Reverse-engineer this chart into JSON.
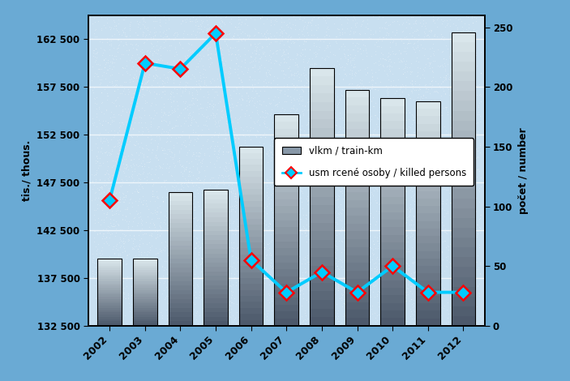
{
  "years": [
    2002,
    2003,
    2004,
    2005,
    2006,
    2007,
    2008,
    2009,
    2010,
    2011,
    2012
  ],
  "train_km": [
    139500,
    139500,
    146500,
    146700,
    151200,
    154600,
    159500,
    157200,
    156300,
    156000,
    163200
  ],
  "killed": [
    105,
    220,
    215,
    245,
    55,
    28,
    45,
    28,
    50,
    28,
    28
  ],
  "line_color": "#00ccff",
  "marker_face_color": "#00ccff",
  "marker_edge_color": "#ff0000",
  "outer_bg_color": "#6aaad4",
  "plot_bg_color": "#c8dff0",
  "ylim_left": [
    132500,
    165000
  ],
  "ylim_right": [
    0,
    260
  ],
  "yticks_left": [
    132500,
    137500,
    142500,
    147500,
    152500,
    157500,
    162500
  ],
  "ytick_labels_left": [
    "132 500",
    "137 500",
    "142 500",
    "147 500",
    "152 500",
    "157 500",
    "162 500"
  ],
  "yticks_right": [
    0,
    50,
    100,
    150,
    200,
    250
  ],
  "left_ylabel": "tis./ thous.",
  "right_ylabel": "počet / number",
  "legend_label_bar": "vlkm / train-km",
  "legend_label_line": "usm rcené osoby / killed persons"
}
